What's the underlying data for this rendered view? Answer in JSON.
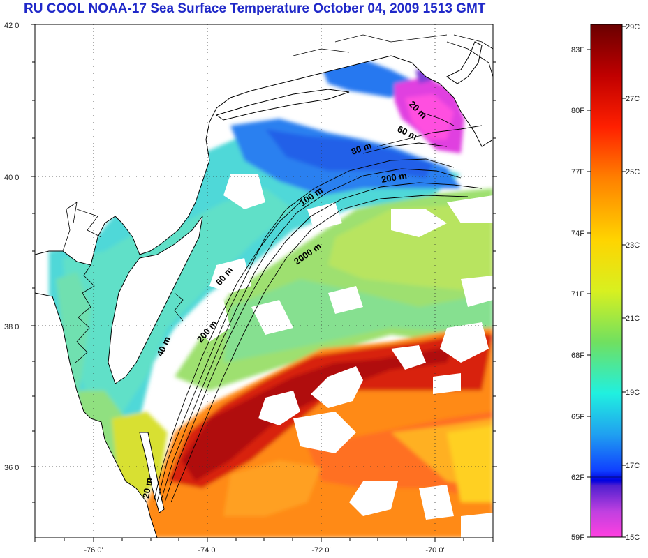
{
  "title": "RU COOL  NOAA-17 Sea Surface Temperature October 04, 2009 1513 GMT",
  "map": {
    "lat_labels": [
      "42 0'",
      "40 0'",
      "38 0'",
      "36 0'"
    ],
    "lon_labels": [
      "-76 0'",
      "-74 0'",
      "-72 0'",
      "-70 0'"
    ],
    "isobath_labels": [
      "20 m",
      "60 m",
      "80 m",
      "200 m",
      "100 m",
      "2000 m",
      "60 m",
      "200 m",
      "40 m",
      "20 m"
    ]
  },
  "colorbar": {
    "fahrenheit_labels": [
      "83F",
      "80F",
      "77F",
      "74F",
      "71F",
      "68F",
      "65F",
      "62F",
      "59F"
    ],
    "celsius_labels": [
      "29C",
      "27C",
      "25C",
      "23C",
      "21C",
      "19C",
      "17C",
      "15C"
    ]
  },
  "colors": {
    "title": "#1f28c8",
    "land": "#ffffff",
    "coast": "#000000"
  }
}
